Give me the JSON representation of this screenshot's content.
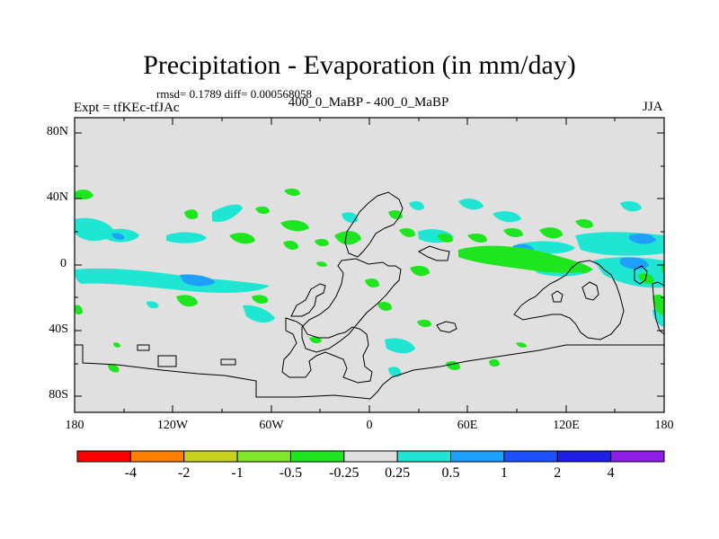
{
  "title": "Precipitation - Evaporation (in mm/day)",
  "stats": "rmsd= 0.1789 diff= 0.000568058",
  "experiment": "Expt = tfKEc-tfJAc",
  "subtitle": "400_0_MaBP - 400_0_MaBP",
  "season": "JJA",
  "y_tick_labels": [
    "80N",
    "40N",
    "0",
    "40S",
    "80S"
  ],
  "x_tick_labels": [
    "180",
    "120W",
    "60W",
    "0",
    "60E",
    "120E",
    "180"
  ],
  "colorbar": {
    "labels": [
      "-4",
      "-2",
      "-1",
      "-0.5",
      "-0.25",
      "0.25",
      "0.5",
      "1",
      "2",
      "4"
    ],
    "colors": [
      "#ff0000",
      "#ff7f00",
      "#c8d21e",
      "#82e628",
      "#1ee61e",
      "#e0e0e0",
      "#1ee6d2",
      "#1ea0ff",
      "#1e50ff",
      "#1e1ee6",
      "#8c1ee6"
    ]
  },
  "map_background": "#e0e0e0"
}
